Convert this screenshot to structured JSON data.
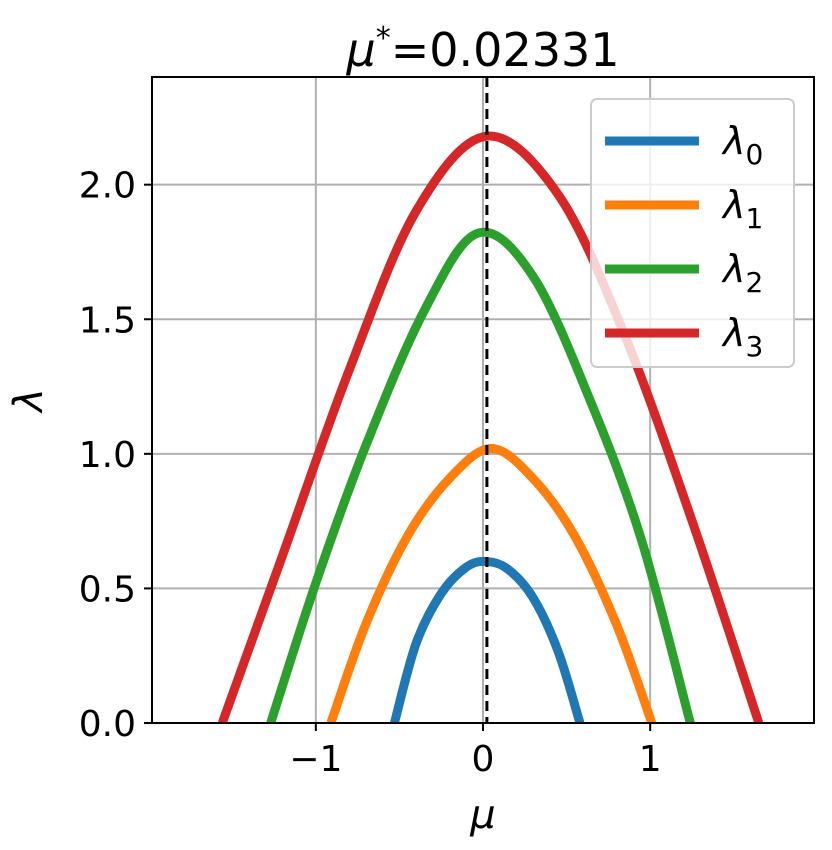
{
  "chart_data": {
    "type": "line",
    "title": "μ*=0.02331",
    "title_parts": {
      "symbol": "μ",
      "sup": "*",
      "value": "=0.02331"
    },
    "xlabel": "μ",
    "ylabel": "λ",
    "xlim": [
      -1.98,
      1.98
    ],
    "ylim": [
      0,
      2.4
    ],
    "xticks": [
      -1,
      0,
      1
    ],
    "xtick_labels": [
      "−1",
      "0",
      "1"
    ],
    "yticks": [
      0.0,
      0.5,
      1.0,
      1.5,
      2.0
    ],
    "ytick_labels": [
      "0.0",
      "0.5",
      "1.0",
      "1.5",
      "2.0"
    ],
    "grid": true,
    "legend_position": "top-right",
    "vline": {
      "x": 0.02331,
      "style": "dashed",
      "color": "#000000"
    },
    "series": [
      {
        "name": "λ0",
        "base": "λ",
        "sub": "0",
        "color": "#1f77b4",
        "x": [
          -0.53,
          -0.4,
          -0.25,
          -0.1,
          0.02,
          0.15,
          0.3,
          0.45,
          0.58
        ],
        "y": [
          0.0,
          0.296,
          0.481,
          0.579,
          0.6,
          0.571,
          0.465,
          0.265,
          0.0
        ]
      },
      {
        "name": "λ1",
        "base": "λ",
        "sub": "1",
        "color": "#ff7f0e",
        "x": [
          -0.91,
          -0.7,
          -0.45,
          -0.2,
          0.05,
          0.3,
          0.55,
          0.8,
          1.01
        ],
        "y": [
          0.0,
          0.369,
          0.696,
          0.909,
          1.02,
          0.908,
          0.693,
          0.364,
          0.0
        ]
      },
      {
        "name": "λ2",
        "base": "λ",
        "sub": "2",
        "color": "#2ca02c",
        "x": [
          -1.27,
          -1.0,
          -0.7,
          -0.35,
          -0.03,
          0.3,
          0.65,
          0.95,
          1.24
        ],
        "y": [
          0.0,
          0.52,
          1.032,
          1.534,
          1.82,
          1.659,
          1.185,
          0.676,
          0.0
        ]
      },
      {
        "name": "λ3",
        "base": "λ",
        "sub": "3",
        "color": "#d62728",
        "x": [
          -1.56,
          -1.2,
          -0.8,
          -0.4,
          0.02,
          0.45,
          0.85,
          1.25,
          1.65
        ],
        "y": [
          0.0,
          0.621,
          1.312,
          1.902,
          2.18,
          1.963,
          1.437,
          0.752,
          0.0
        ]
      }
    ]
  }
}
